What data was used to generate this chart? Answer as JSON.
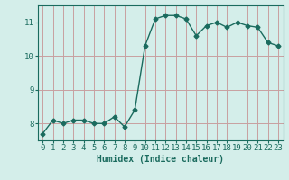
{
  "xlabel": "Humidex (Indice chaleur)",
  "x": [
    0,
    1,
    2,
    3,
    4,
    5,
    6,
    7,
    8,
    9,
    10,
    11,
    12,
    13,
    14,
    15,
    16,
    17,
    18,
    19,
    20,
    21,
    22,
    23
  ],
  "y": [
    7.7,
    8.1,
    8.0,
    8.1,
    8.1,
    8.0,
    8.0,
    8.2,
    7.9,
    8.4,
    10.3,
    11.1,
    11.2,
    11.2,
    11.1,
    10.6,
    10.9,
    11.0,
    10.85,
    11.0,
    10.9,
    10.85,
    10.4,
    10.3
  ],
  "line_color": "#1a6b5e",
  "marker": "D",
  "markersize": 2.5,
  "background_color": "#d4eeea",
  "grid_color": "#c8a0a0",
  "ylim": [
    7.5,
    11.5
  ],
  "yticks": [
    8,
    9,
    10,
    11
  ],
  "xticks": [
    0,
    1,
    2,
    3,
    4,
    5,
    6,
    7,
    8,
    9,
    10,
    11,
    12,
    13,
    14,
    15,
    16,
    17,
    18,
    19,
    20,
    21,
    22,
    23
  ],
  "xlabel_fontsize": 7,
  "tick_fontsize": 6.5,
  "axis_color": "#1a6b5e",
  "linewidth": 1.0
}
